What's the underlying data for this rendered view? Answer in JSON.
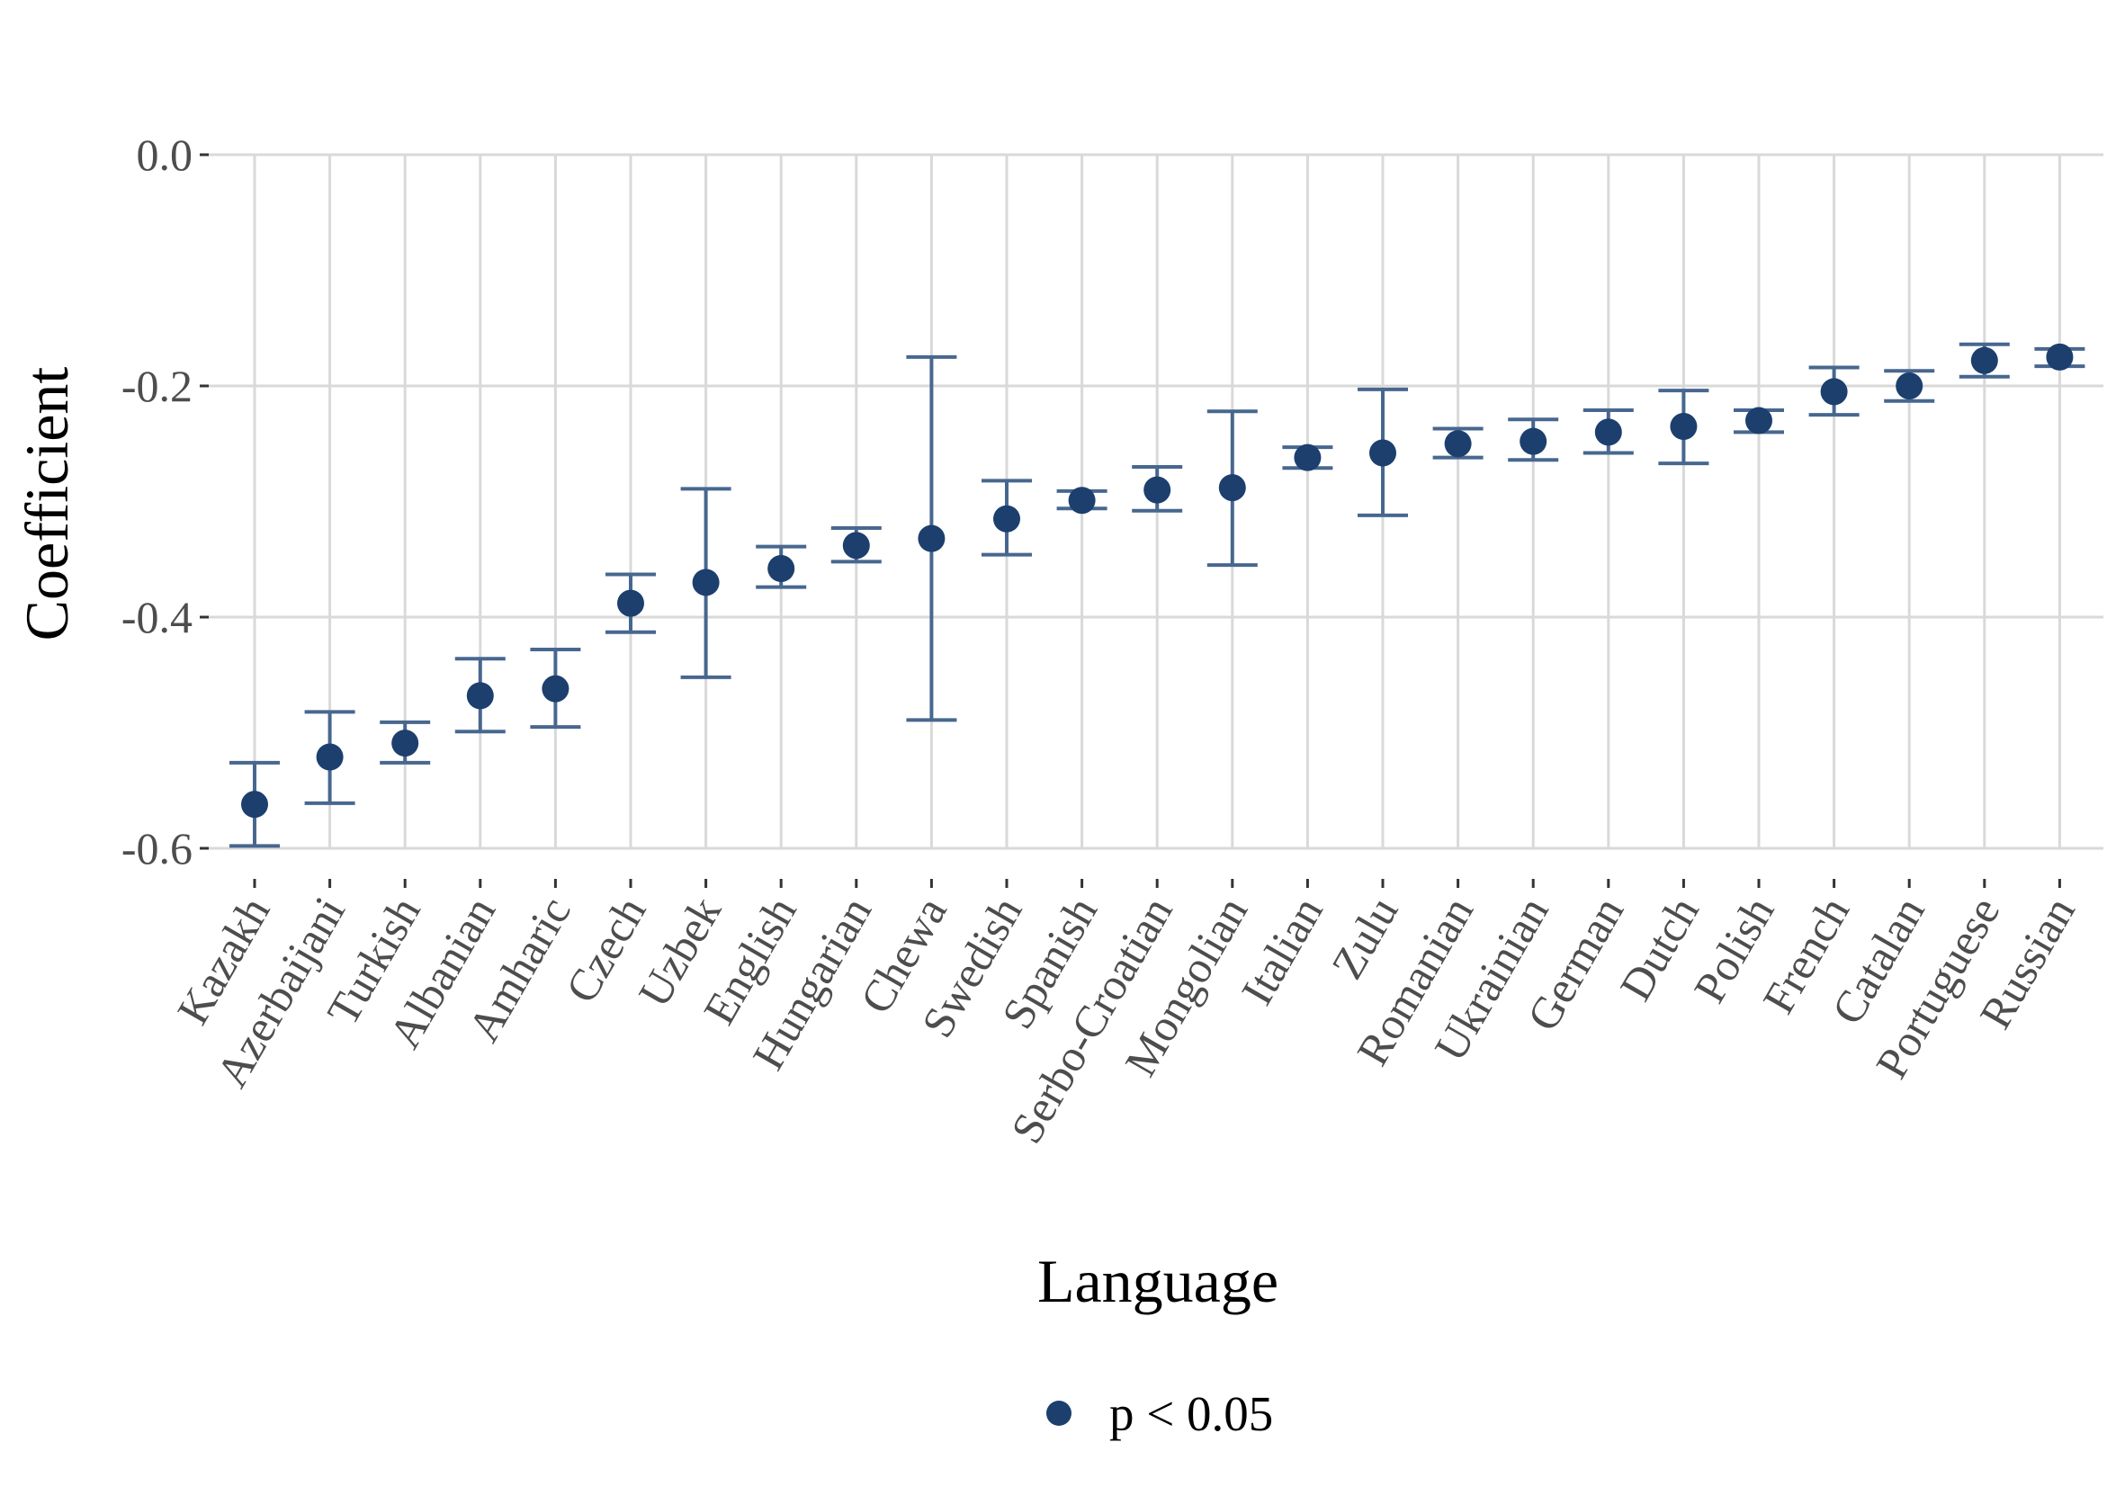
{
  "chart_data": {
    "type": "scatter",
    "xlabel": "Language",
    "ylabel": "Coefficient",
    "ylim": [
      -0.6,
      0.0
    ],
    "yticks": [
      "0.0",
      "-0.2",
      "-0.4",
      "-0.6"
    ],
    "ytick_values": [
      0.0,
      -0.2,
      -0.4,
      -0.6
    ],
    "grid": true,
    "legend_placement": "bottom",
    "legend": [
      {
        "label": "p < 0.05",
        "color": "#1c3f6e"
      }
    ],
    "point_color": "#1c3f6e",
    "errorbar_color": "#47678f",
    "points": [
      {
        "language": "Kazakh",
        "value": -0.562,
        "lower": -0.598,
        "upper": -0.526
      },
      {
        "language": "Azerbaijani",
        "value": -0.521,
        "lower": -0.561,
        "upper": -0.482
      },
      {
        "language": "Turkish",
        "value": -0.509,
        "lower": -0.526,
        "upper": -0.491
      },
      {
        "language": "Albanian",
        "value": -0.468,
        "lower": -0.499,
        "upper": -0.436
      },
      {
        "language": "Amharic",
        "value": -0.462,
        "lower": -0.495,
        "upper": -0.428
      },
      {
        "language": "Czech",
        "value": -0.388,
        "lower": -0.413,
        "upper": -0.363
      },
      {
        "language": "Uzbek",
        "value": -0.37,
        "lower": -0.452,
        "upper": -0.289
      },
      {
        "language": "English",
        "value": -0.358,
        "lower": -0.374,
        "upper": -0.339
      },
      {
        "language": "Hungarian",
        "value": -0.338,
        "lower": -0.352,
        "upper": -0.323
      },
      {
        "language": "Chewa",
        "value": -0.332,
        "lower": -0.489,
        "upper": -0.175
      },
      {
        "language": "Swedish",
        "value": -0.315,
        "lower": -0.346,
        "upper": -0.282
      },
      {
        "language": "Spanish",
        "value": -0.299,
        "lower": -0.306,
        "upper": -0.291
      },
      {
        "language": "Serbo-Croatian",
        "value": -0.29,
        "lower": -0.308,
        "upper": -0.27
      },
      {
        "language": "Mongolian",
        "value": -0.288,
        "lower": -0.355,
        "upper": -0.222
      },
      {
        "language": "Italian",
        "value": -0.262,
        "lower": -0.271,
        "upper": -0.253
      },
      {
        "language": "Zulu",
        "value": -0.258,
        "lower": -0.312,
        "upper": -0.203
      },
      {
        "language": "Romanian",
        "value": -0.25,
        "lower": -0.262,
        "upper": -0.237
      },
      {
        "language": "Ukrainian",
        "value": -0.248,
        "lower": -0.264,
        "upper": -0.229
      },
      {
        "language": "German",
        "value": -0.24,
        "lower": -0.258,
        "upper": -0.221
      },
      {
        "language": "Dutch",
        "value": -0.235,
        "lower": -0.267,
        "upper": -0.204
      },
      {
        "language": "Polish",
        "value": -0.23,
        "lower": -0.24,
        "upper": -0.221
      },
      {
        "language": "French",
        "value": -0.205,
        "lower": -0.225,
        "upper": -0.184
      },
      {
        "language": "Catalan",
        "value": -0.2,
        "lower": -0.213,
        "upper": -0.187
      },
      {
        "language": "Portuguese",
        "value": -0.178,
        "lower": -0.192,
        "upper": -0.164
      },
      {
        "language": "Russian",
        "value": -0.175,
        "lower": -0.183,
        "upper": -0.168
      }
    ]
  }
}
